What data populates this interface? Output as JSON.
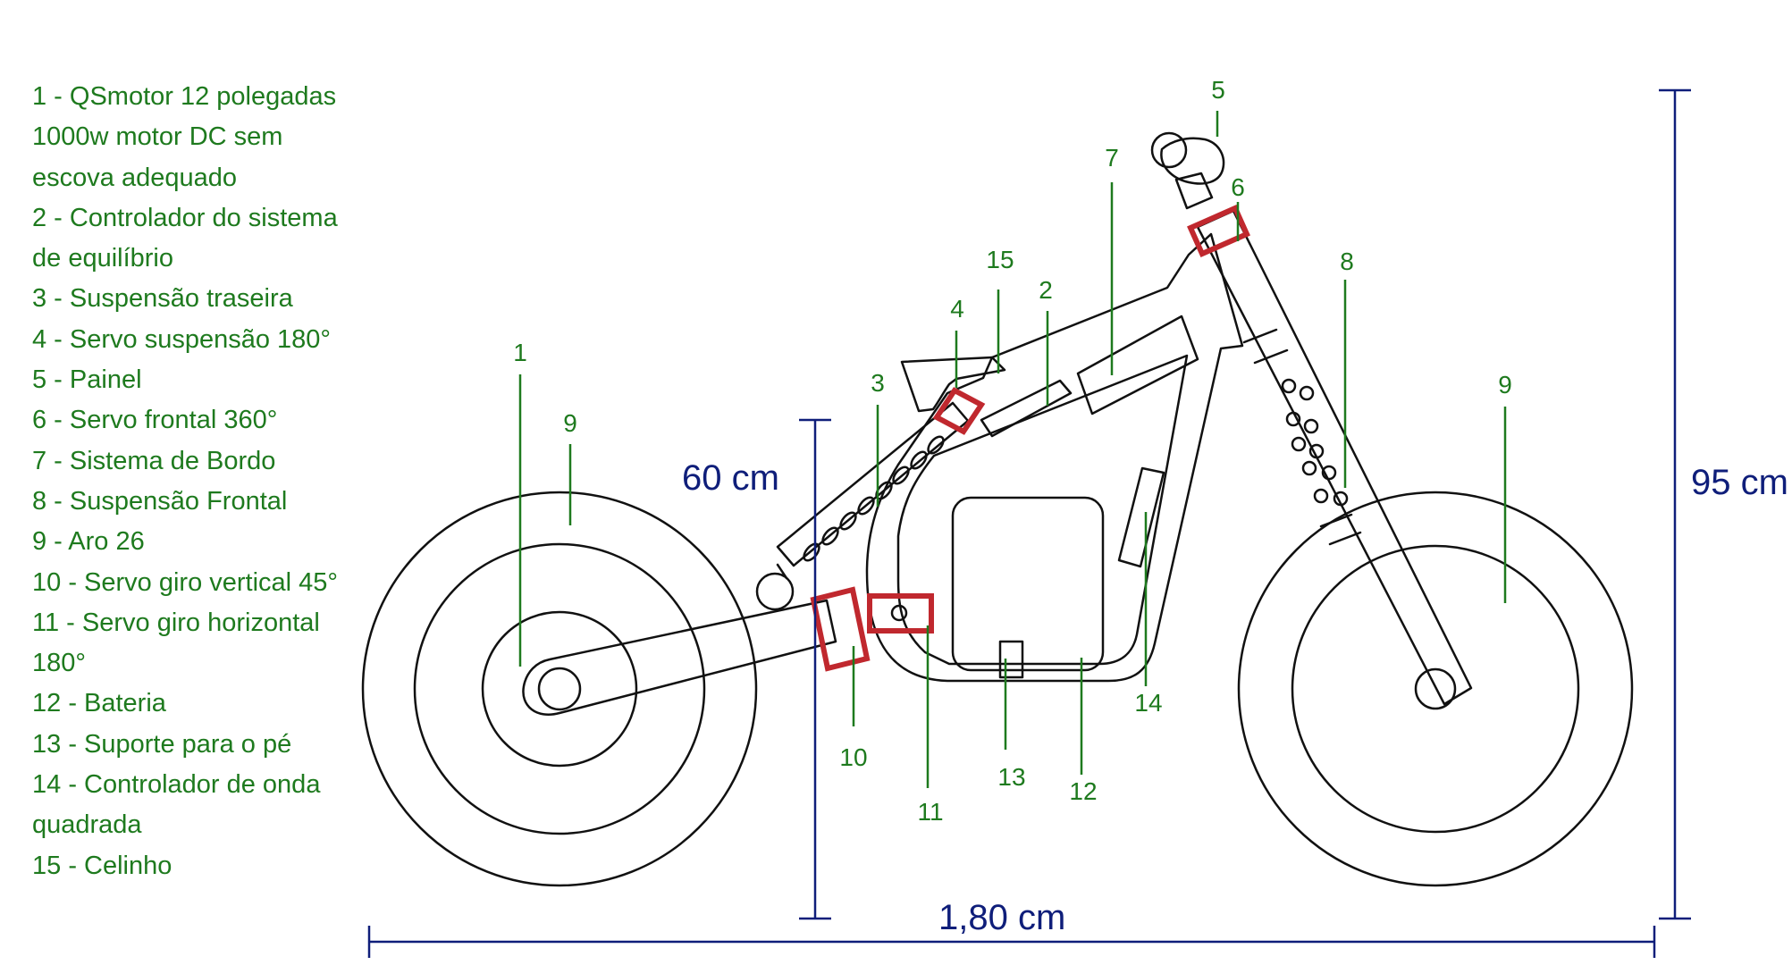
{
  "legend": [
    "1 - QSmotor 12 polegadas",
    "1000w motor DC sem",
    "escova adequado",
    "2 - Controlador do sistema",
    "de equilíbrio",
    "3 - Suspensão traseira",
    "4 - Servo suspensão 180°",
    "5 - Painel",
    "6 - Servo frontal 360°",
    "7 - Sistema de Bordo",
    "8 - Suspensão Frontal",
    "9 - Aro 26",
    "10 - Servo giro vertical 45°",
    "11 - Servo giro horizontal",
    "180°",
    "12 - Bateria",
    "13 - Suporte para o pé",
    "14 - Controlador de onda",
    "quadrada",
    "15 - Celinho"
  ],
  "callouts": {
    "c1": "1",
    "c2": "2",
    "c3": "3",
    "c4": "4",
    "c5": "5",
    "c6": "6",
    "c7": "7",
    "c8": "8",
    "c9_rear": "9",
    "c9_front": "9",
    "c10": "10",
    "c11": "11",
    "c12": "12",
    "c13": "13",
    "c14": "14",
    "c15": "15"
  },
  "dimensions": {
    "height_seat": "60 cm",
    "height_total": "95 cm",
    "length": "1,80 cm"
  },
  "colors": {
    "callout_green": "#1e7a1e",
    "servo_red": "#c0282e",
    "dimension_blue": "#0f1e7a",
    "outline": "#111111"
  }
}
